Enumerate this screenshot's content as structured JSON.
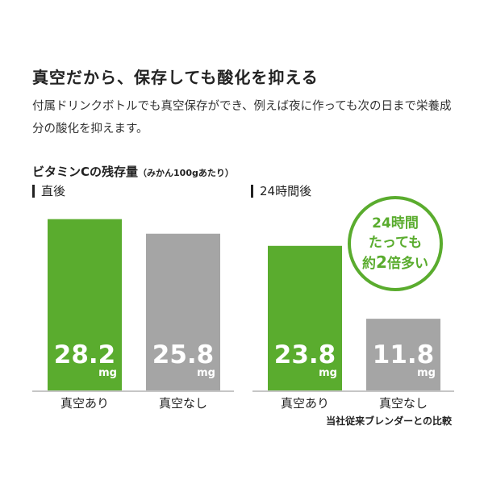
{
  "headline": "真空だから、保存しても酸化を抑える",
  "description": "付属ドリンクボトルでも真空保存ができ、例えば夜に作っても次の日まで栄養成分の酸化を抑えます。",
  "chart_title": "ビタミンCの残存量",
  "chart_subtitle": "（みかん100gあたり）",
  "badge": {
    "line1": "24時間",
    "line2": "たっても",
    "line3_prefix": "約",
    "line3_num": "2",
    "line3_suffix": "倍多い"
  },
  "footnote": "当社従来ブレンダーとの比較",
  "colors": {
    "green": "#5aac2e",
    "gray": "#a5a5a5",
    "axis": "#b4b4b4"
  },
  "chart_data": [
    {
      "type": "bar",
      "panel_label": "直後",
      "categories": [
        "真空あり",
        "真空なし"
      ],
      "values": [
        28.2,
        25.8
      ],
      "unit": "mg",
      "value_labels": [
        "28.2",
        "25.8"
      ],
      "colors": [
        "#5aac2e",
        "#a5a5a5"
      ],
      "ylim": [
        0,
        30
      ]
    },
    {
      "type": "bar",
      "panel_label": "24時間後",
      "categories": [
        "真空あり",
        "真空なし"
      ],
      "values": [
        23.8,
        11.8
      ],
      "unit": "mg",
      "value_labels": [
        "23.8",
        "11.8"
      ],
      "colors": [
        "#5aac2e",
        "#a5a5a5"
      ],
      "ylim": [
        0,
        30
      ]
    }
  ]
}
